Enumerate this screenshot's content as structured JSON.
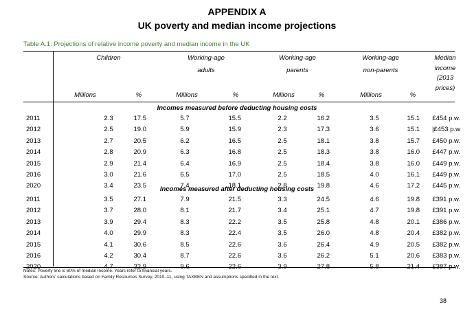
{
  "title": "APPENDIX A",
  "subtitle": "UK poverty and median income projections",
  "caption": "Table A.1: Projections of relative income poverty and median income in the UK",
  "groups": {
    "children": "Children",
    "working_age_adults": [
      "Working-age",
      "adults"
    ],
    "working_age_parents": [
      "Working-age",
      "parents"
    ],
    "working_age_non_parents": [
      "Working-age",
      "non-parents"
    ],
    "median_income": [
      "Median",
      "income",
      "(2013",
      "prices)"
    ]
  },
  "subheaders": [
    "Millions",
    "%",
    "Millions",
    "%",
    "Millions",
    "%",
    "Millions",
    "%"
  ],
  "sections": [
    {
      "label": "Incomes measured before deducting housing costs",
      "rows": [
        [
          "2011",
          "2.3",
          "17.5",
          "5.7",
          "15.5",
          "2.2",
          "16.2",
          "3.5",
          "15.1",
          "£454 p.w."
        ],
        [
          "2012",
          "2.5",
          "19.0",
          "5.9",
          "15.9",
          "2.3",
          "17.3",
          "3.6",
          "15.1",
          "|£453 p.w"
        ],
        [
          "2013",
          "2.7",
          "20.5",
          "6.2",
          "16.5",
          "2.5",
          "18.1",
          "3.8",
          "15.7",
          "£450 p.w."
        ],
        [
          "2014",
          "2.8",
          "20.9",
          "6.3",
          "16.8",
          "2.5",
          "18.3",
          "3.8",
          "16.0",
          "£447 p.w."
        ],
        [
          "2015",
          "2.9",
          "21.4",
          "6.4",
          "16.9",
          "2.5",
          "18.4",
          "3.8",
          "16.0",
          "£449 p.w."
        ],
        [
          "2016",
          "3.0",
          "21.6",
          "6.5",
          "17.0",
          "2.5",
          "18.5",
          "4.0",
          "16.1",
          "£449 p.w."
        ],
        [
          "2020",
          "3.4",
          "23.5",
          "7.4",
          "18.1",
          "2.8",
          "19.8",
          "4.6",
          "17.2",
          "£445 p.w."
        ]
      ]
    },
    {
      "label": "Incomes measured after deducting housing costs",
      "rows": [
        [
          "2011",
          "3.5",
          "27.1",
          "7.9",
          "21.5",
          "3.3",
          "24.5",
          "4.6",
          "19.8",
          "£391 p.w."
        ],
        [
          "2012",
          "3.7",
          "28.0",
          "8.1",
          "21.7",
          "3.4",
          "25.1",
          "4.7",
          "19.8",
          "£391 p.w."
        ],
        [
          "2013",
          "3.9",
          "29.4",
          "8.3",
          "22.2",
          "3.5",
          "25.8",
          "4.8",
          "20.1",
          "£386 p.w."
        ],
        [
          "2014",
          "4.0",
          "29.9",
          "8.3",
          "22.4",
          "3.5",
          "26.0",
          "4.8",
          "20.4",
          "£382 p.w."
        ],
        [
          "2015",
          "4.1",
          "30.6",
          "8.5",
          "22.6",
          "3.6",
          "26.4",
          "4.9",
          "20.5",
          "£382 p.w."
        ],
        [
          "2016",
          "4.2",
          "30.4",
          "8.7",
          "22.6",
          "3.6",
          "26.2",
          "5.1",
          "20.6",
          "£383 p.w."
        ],
        [
          "2020",
          "4.7",
          "32.9",
          "9.6",
          "22.6",
          "3.9",
          "27.8",
          "5.8",
          "21.4",
          "£387 p.w."
        ]
      ]
    }
  ],
  "notes": [
    "Notes: Poverty line is 60% of median income. Years refer to financial years.",
    "Source: Authors' calculations based on Family Resources Survey, 2010–11, using TAXBEN and assumptions specified in the text."
  ],
  "page_number": "38",
  "colors": {
    "caption": "#4a7a3c",
    "text": "#000000"
  }
}
